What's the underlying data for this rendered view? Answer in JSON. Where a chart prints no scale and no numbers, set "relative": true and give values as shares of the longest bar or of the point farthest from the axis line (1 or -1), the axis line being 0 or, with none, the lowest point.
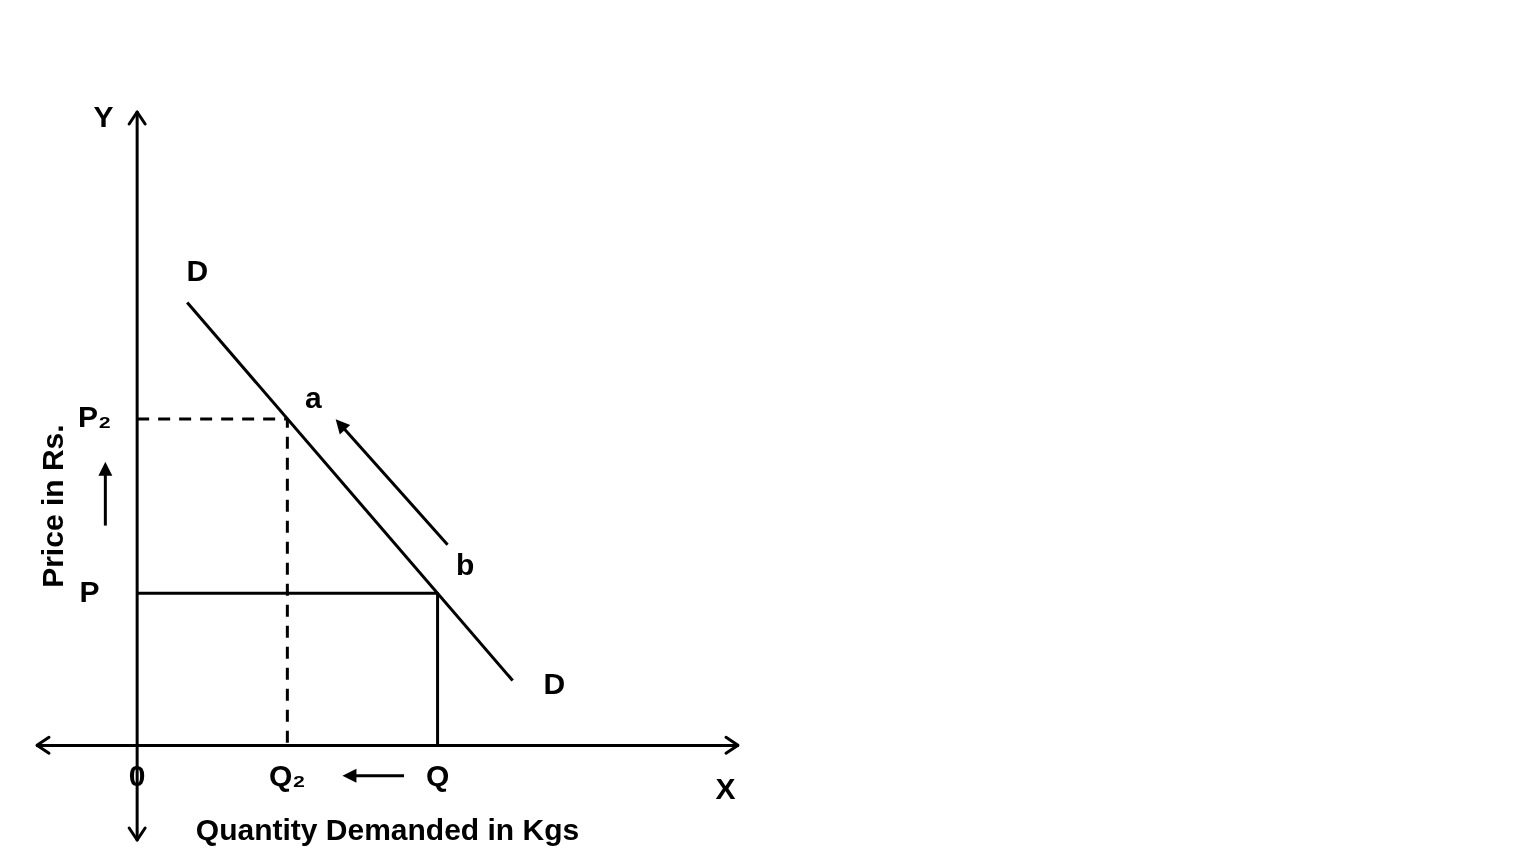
{
  "chart_data": {
    "type": "line",
    "relative": true,
    "xlabel": "Quantity Demanded in Kgs",
    "ylabel": "Price in Rs.",
    "legend": false,
    "marker": "none",
    "categories": [
      null,
      null,
      null,
      null,
      "0",
      null,
      null,
      null,
      null,
      null,
      "Q₂",
      null,
      null,
      null,
      null,
      null,
      "Q",
      null,
      null,
      null,
      null,
      null,
      null,
      null,
      null,
      null,
      null,
      null,
      null
    ],
    "series": [
      {
        "color": "#000000",
        "line_style": "solid",
        "values": [
          null,
          null,
          null,
          null,
          null,
          null,
          1,
          null,
          null,
          null,
          null,
          null,
          null,
          null,
          null,
          null,
          null,
          null,
          null,
          0.146,
          null,
          null,
          null,
          null,
          null,
          null,
          null,
          null,
          null
        ]
      },
      {
        "color": "#000000",
        "line_style": "dashed",
        "x": [
          "0",
          "Q₂",
          "Q₂"
        ],
        "values": [
          0.737,
          0.737,
          0
        ]
      },
      {
        "color": "#000000",
        "line_style": "solid",
        "x": [
          "0",
          "Q",
          "Q"
        ],
        "values": [
          0.343,
          0.343,
          0
        ]
      }
    ],
    "annotations": [
      "D",
      "D",
      "a",
      "b",
      "Y",
      "X",
      "P",
      "P₂"
    ]
  }
}
